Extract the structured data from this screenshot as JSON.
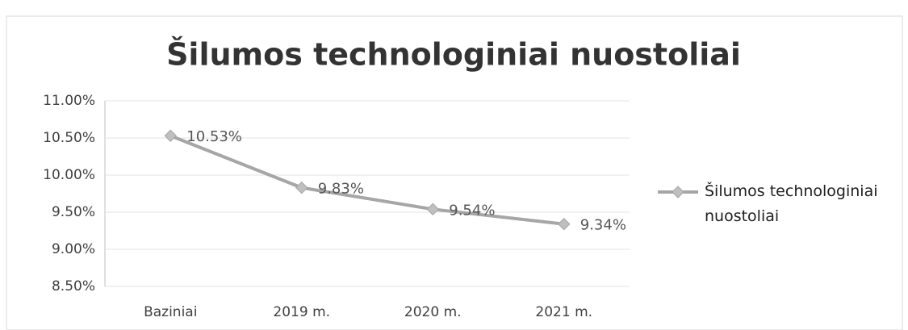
{
  "chart_data": {
    "type": "line",
    "title": "Šilumos technologiniai nuostoliai",
    "categories": [
      "Baziniai",
      "2019 m.",
      "2020 m.",
      "2021 m."
    ],
    "series": [
      {
        "name": "Šilumos technologiniai nuostoliai",
        "color": "#a6a6a6",
        "values": [
          10.53,
          9.83,
          9.54,
          9.34
        ],
        "value_labels": [
          "10.53%",
          "9.83%",
          "9.54%",
          "9.34%"
        ]
      }
    ],
    "ylim": [
      8.5,
      11
    ],
    "yticks": [
      {
        "value": 8.5,
        "label": "8.50%"
      },
      {
        "value": 9,
        "label": "9.00%"
      },
      {
        "value": 9.5,
        "label": "9.50%"
      },
      {
        "value": 10,
        "label": "10.00%"
      },
      {
        "value": 10.5,
        "label": "10.50%"
      },
      {
        "value": 11,
        "label": "11.00%"
      }
    ],
    "grid": true,
    "legend": "right"
  }
}
